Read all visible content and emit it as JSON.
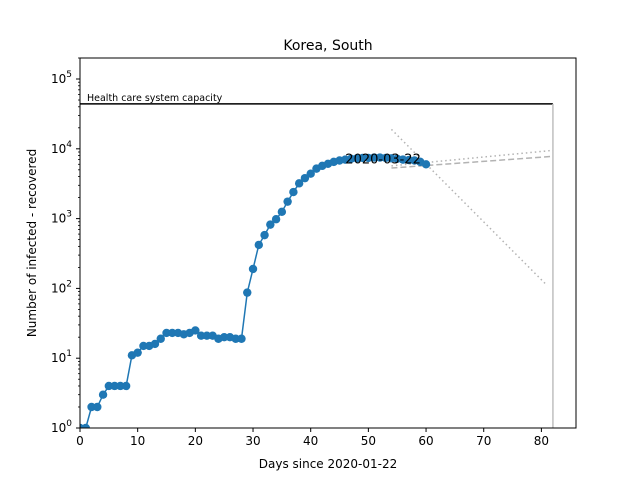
{
  "chart_data": {
    "type": "line",
    "title": "Korea, South",
    "xlabel": "Days since 2020-01-22",
    "ylabel": "Number of infected - recovered",
    "xlim": [
      0,
      86
    ],
    "ylim": [
      1,
      200000
    ],
    "yscale": "log",
    "x_ticks": [
      0,
      10,
      20,
      30,
      40,
      50,
      60,
      70,
      80
    ],
    "y_ticks": [
      {
        "value": 1,
        "base": "10",
        "exp": "0"
      },
      {
        "value": 10,
        "base": "10",
        "exp": "1"
      },
      {
        "value": 100,
        "base": "10",
        "exp": "2"
      },
      {
        "value": 1000,
        "base": "10",
        "exp": "3"
      },
      {
        "value": 10000,
        "base": "10",
        "exp": "4"
      },
      {
        "value": 100000,
        "base": "10",
        "exp": "5"
      }
    ],
    "grid": false,
    "series": [
      {
        "color": "#1f77b4",
        "marker": "circle",
        "x": [
          0,
          1,
          2,
          3,
          4,
          5,
          6,
          7,
          8,
          9,
          10,
          11,
          12,
          13,
          14,
          15,
          16,
          17,
          18,
          19,
          20,
          21,
          22,
          23,
          24,
          25,
          26,
          27,
          28,
          29,
          30,
          31,
          32,
          33,
          34,
          35,
          36,
          37,
          38,
          39,
          40,
          41,
          42,
          43,
          44,
          45,
          46,
          47,
          48,
          49,
          50,
          51,
          52,
          53,
          54,
          55,
          56,
          57,
          58,
          59,
          60
        ],
        "y": [
          1,
          1,
          2,
          2,
          3,
          4,
          4,
          4,
          4,
          11,
          12,
          15,
          15,
          16,
          19,
          23,
          23,
          23,
          22,
          23,
          25,
          21,
          21,
          21,
          19,
          20,
          20,
          19,
          19,
          87,
          190,
          420,
          580,
          820,
          980,
          1250,
          1750,
          2400,
          3200,
          3800,
          4400,
          5200,
          5700,
          6100,
          6500,
          6800,
          7000,
          7200,
          7300,
          7400,
          7400,
          7500,
          7500,
          7400,
          7300,
          7200,
          7000,
          6900,
          6800,
          6500,
          6000
        ]
      }
    ],
    "projections": [
      {
        "style": "dashed",
        "x": [
          54,
          82
        ],
        "y": [
          5300,
          7800
        ]
      },
      {
        "style": "dotted",
        "x": [
          54,
          82
        ],
        "y": [
          5700,
          9500
        ]
      },
      {
        "style": "dotted",
        "x": [
          54,
          81
        ],
        "y": [
          19000,
          110
        ]
      }
    ],
    "capacity": {
      "label": "Health care system capacity",
      "value": 44000,
      "x_end": 82
    },
    "vertical_line": {
      "x": 82
    },
    "annotation": {
      "text": "2020-03-22",
      "x": 46,
      "y": 7000
    }
  }
}
